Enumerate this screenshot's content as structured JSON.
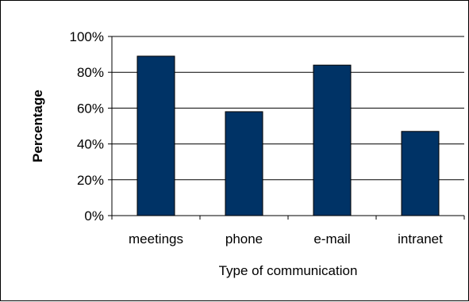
{
  "chart_data": {
    "type": "bar",
    "title": "",
    "xlabel": "Type of communication",
    "ylabel": "Percentage",
    "categories": [
      "meetings",
      "phone",
      "e-mail",
      "intranet"
    ],
    "values": [
      89,
      58,
      84,
      47
    ],
    "ylim": [
      0,
      100
    ],
    "yticks": [
      0,
      20,
      40,
      60,
      80,
      100
    ],
    "ytick_labels": [
      "0%",
      "20%",
      "40%",
      "60%",
      "80%",
      "100%"
    ],
    "grid": true,
    "legend": "none",
    "bar_color": "#003366"
  }
}
